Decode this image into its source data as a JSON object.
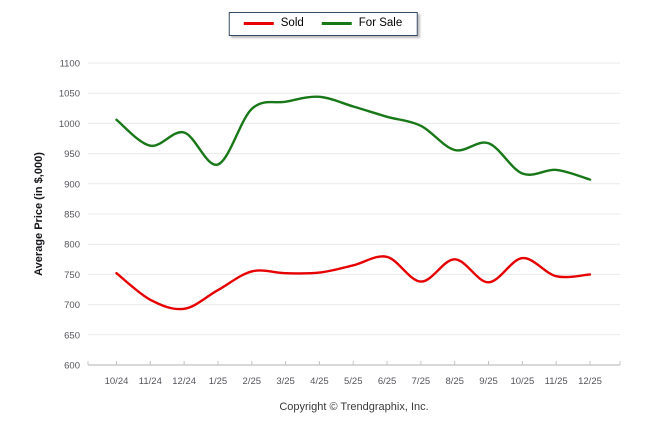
{
  "legend": {
    "items": [
      {
        "label": "Sold",
        "color": "#e60000"
      },
      {
        "label": "For Sale",
        "color": "#187818"
      }
    ]
  },
  "footer": {
    "copyright": "Copyright © Trendgraphix, Inc."
  },
  "chart_data": {
    "type": "line",
    "title": "",
    "xlabel": "",
    "ylabel": "Average Price (in $,000)",
    "categories": [
      "10/24",
      "11/24",
      "12/24",
      "1/25",
      "2/25",
      "3/25",
      "4/25",
      "5/25",
      "6/25",
      "7/25",
      "8/25",
      "9/25",
      "10/25",
      "11/25",
      "12/25"
    ],
    "series": [
      {
        "name": "Sold",
        "color": "#e60000",
        "values": [
          752,
          708,
          693,
          724,
          755,
          752,
          753,
          765,
          779,
          738,
          775,
          737,
          777,
          747,
          750
        ]
      },
      {
        "name": "For Sale",
        "color": "#187818",
        "values": [
          1006,
          963,
          985,
          932,
          1024,
          1036,
          1044,
          1028,
          1011,
          996,
          956,
          967,
          917,
          923,
          907
        ]
      }
    ],
    "ylim": [
      600,
      1100
    ],
    "ytick_step": 50,
    "ytick_labels": [
      "600",
      "650",
      "700",
      "750",
      "800",
      "850",
      "900",
      "950",
      "1000",
      "1050",
      "1100"
    ],
    "grid": true,
    "legend_position": "top-center",
    "line_smoothing": true
  },
  "style": {
    "background": "#ffffff",
    "grid_color": "#e9e9e9",
    "axis_color": "#b0b0b0",
    "tick_color": "#c4c4c4",
    "tick_label_color": "#54545c",
    "y_title_color": "#15151a",
    "legend_border_color": "#334a66",
    "copyright_color": "#3a3a3a"
  }
}
